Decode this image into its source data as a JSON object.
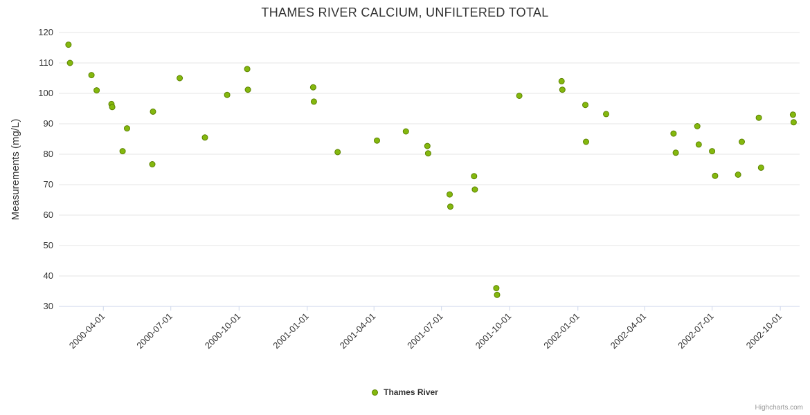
{
  "title": "THAMES RIVER CALCIUM, UNFILTERED TOTAL",
  "legend": {
    "series_label": "Thames River"
  },
  "credits": "Highcharts.com",
  "colors": {
    "point_fill": "#84b80e",
    "point_stroke": "#5c8200",
    "grid_line": "#e6e6e6",
    "axis_line": "#ccd6eb",
    "tick_text": "#333333",
    "title_text": "#333333",
    "credits_text": "#999999"
  },
  "chart_data": {
    "type": "scatter",
    "title": "THAMES RIVER CALCIUM, UNFILTERED TOTAL",
    "xlabel": "",
    "ylabel": "Measurements (mg/L)",
    "ylim": [
      30,
      120
    ],
    "y_ticks": [
      30,
      40,
      50,
      60,
      70,
      80,
      90,
      100,
      110,
      120
    ],
    "x_tick_labels": [
      "2000-04-01",
      "2000-07-01",
      "2000-10-01",
      "2001-01-01",
      "2001-04-01",
      "2001-07-01",
      "2001-10-01",
      "2002-01-01",
      "2002-04-01",
      "2002-07-01",
      "2002-10-01"
    ],
    "x_range": [
      "2000-02-01",
      "2002-10-27"
    ],
    "grid": "horizontal",
    "legend_position": "bottom",
    "series": [
      {
        "name": "Thames River",
        "points": [
          {
            "date": "2000-02-14",
            "value": 116
          },
          {
            "date": "2000-02-16",
            "value": 110
          },
          {
            "date": "2000-03-16",
            "value": 106
          },
          {
            "date": "2000-03-23",
            "value": 101
          },
          {
            "date": "2000-04-12",
            "value": 96.5
          },
          {
            "date": "2000-04-13",
            "value": 95.5
          },
          {
            "date": "2000-04-27",
            "value": 81
          },
          {
            "date": "2000-05-03",
            "value": 88.5
          },
          {
            "date": "2000-06-06",
            "value": 76.7
          },
          {
            "date": "2000-06-07",
            "value": 94
          },
          {
            "date": "2000-07-13",
            "value": 105
          },
          {
            "date": "2000-08-16",
            "value": 85.5
          },
          {
            "date": "2000-09-15",
            "value": 99.5
          },
          {
            "date": "2000-10-12",
            "value": 108
          },
          {
            "date": "2000-10-13",
            "value": 101.2
          },
          {
            "date": "2001-01-09",
            "value": 102
          },
          {
            "date": "2001-01-10",
            "value": 97.3
          },
          {
            "date": "2001-02-11",
            "value": 80.7
          },
          {
            "date": "2001-04-05",
            "value": 84.5
          },
          {
            "date": "2001-05-14",
            "value": 87.5
          },
          {
            "date": "2001-06-12",
            "value": 82.7
          },
          {
            "date": "2001-06-13",
            "value": 80.3
          },
          {
            "date": "2001-07-12",
            "value": 66.8
          },
          {
            "date": "2001-07-13",
            "value": 62.8
          },
          {
            "date": "2001-08-14",
            "value": 72.8
          },
          {
            "date": "2001-08-15",
            "value": 68.4
          },
          {
            "date": "2001-09-13",
            "value": 36
          },
          {
            "date": "2001-09-14",
            "value": 33.8
          },
          {
            "date": "2001-10-14",
            "value": 99.2
          },
          {
            "date": "2001-12-10",
            "value": 104
          },
          {
            "date": "2001-12-11",
            "value": 101.2
          },
          {
            "date": "2002-01-11",
            "value": 96.2
          },
          {
            "date": "2002-01-12",
            "value": 84.1
          },
          {
            "date": "2002-02-08",
            "value": 93.2
          },
          {
            "date": "2002-05-10",
            "value": 86.8
          },
          {
            "date": "2002-05-13",
            "value": 80.5
          },
          {
            "date": "2002-06-11",
            "value": 89.2
          },
          {
            "date": "2002-06-13",
            "value": 83.2
          },
          {
            "date": "2002-07-01",
            "value": 81
          },
          {
            "date": "2002-07-05",
            "value": 72.9
          },
          {
            "date": "2002-08-05",
            "value": 73.3
          },
          {
            "date": "2002-08-10",
            "value": 84.1
          },
          {
            "date": "2002-09-02",
            "value": 92
          },
          {
            "date": "2002-09-05",
            "value": 75.6
          },
          {
            "date": "2002-10-18",
            "value": 93
          },
          {
            "date": "2002-10-19",
            "value": 90.5
          }
        ]
      }
    ]
  }
}
